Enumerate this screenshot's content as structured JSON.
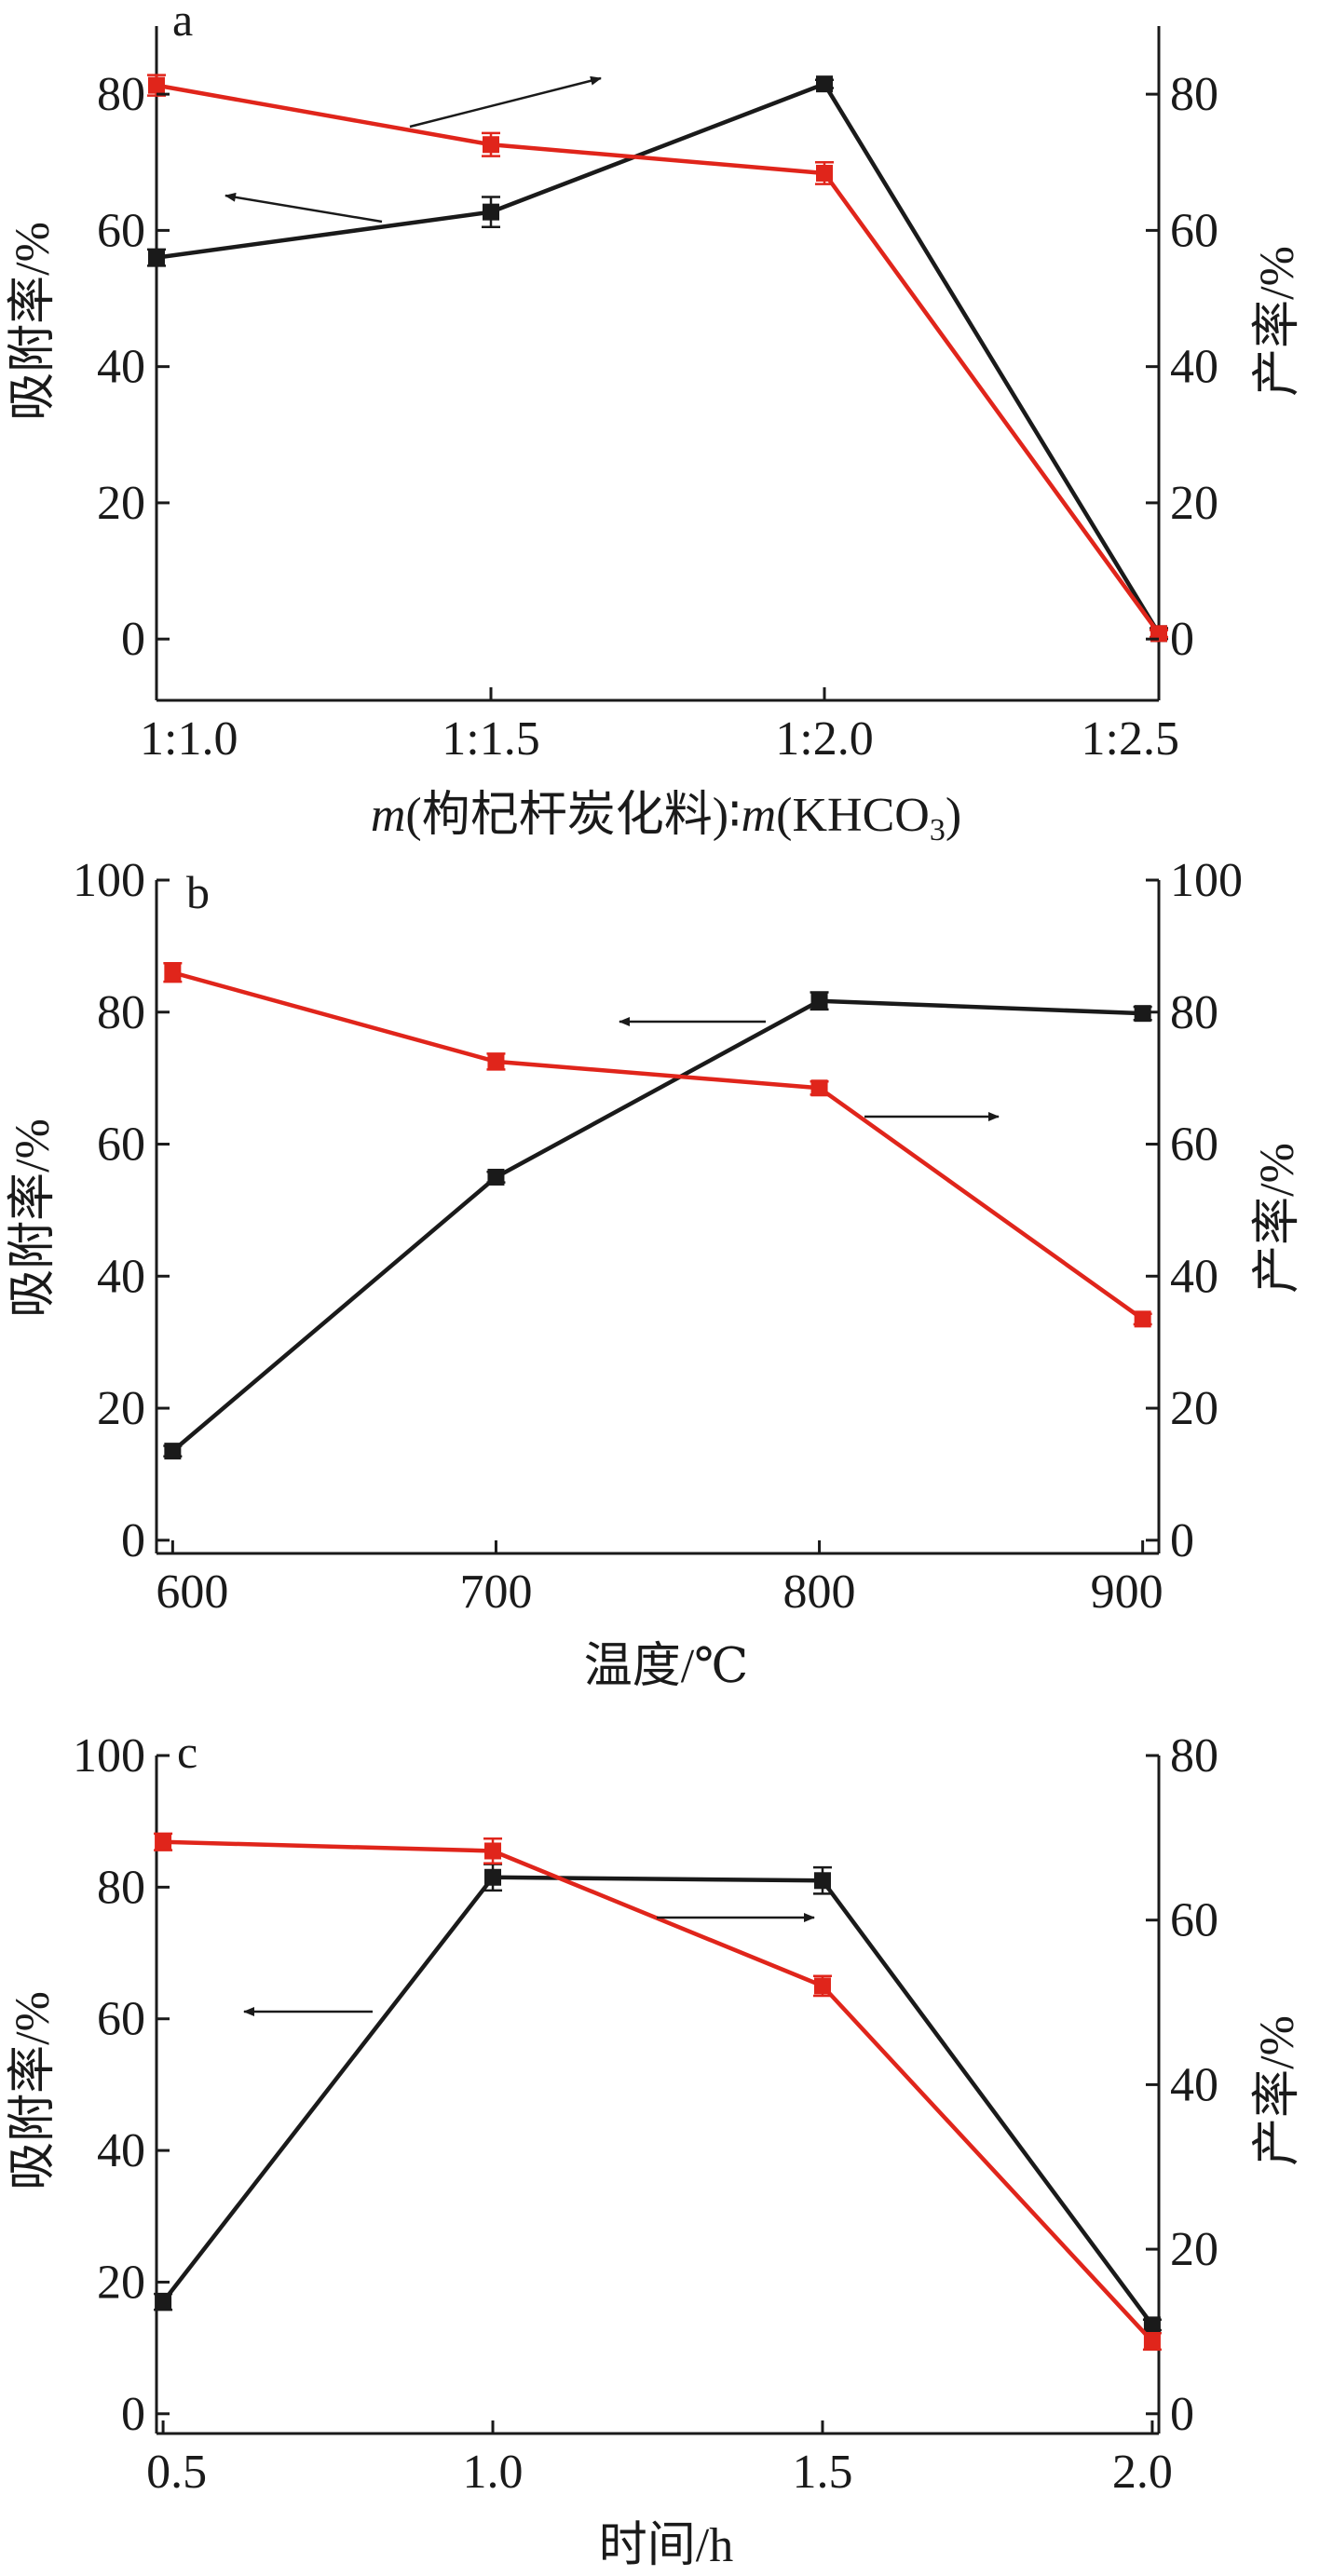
{
  "colors": {
    "adsorption": "#1a1a1a",
    "yield": "#e0251b",
    "axis": "#1a1a1a"
  },
  "chart_data": [
    {
      "type": "line",
      "panel_label": "a",
      "title": "",
      "xlabel_parts": {
        "m1": "m",
        "mid": "(枸杞杆炭化料)∶",
        "m2": "m",
        "pre": "(KHCO",
        "sub": "3",
        "post": ")"
      },
      "ylabel_left": "吸附率/%",
      "ylabel_right": "产率/%",
      "categories": [
        "1:1.0",
        "1:1.5",
        "1:2.0",
        "1:2.5"
      ],
      "ylim_left": [
        -9,
        90
      ],
      "ylim_right": [
        -9,
        90
      ],
      "yticks_left": [
        "0",
        "20",
        "40",
        "60",
        "80"
      ],
      "yticks_right": [
        "0",
        "20",
        "40",
        "60",
        "80"
      ],
      "series": [
        {
          "axis": "left",
          "color": "#1a1a1a",
          "values": [
            56,
            62.7,
            81.5,
            0.8
          ],
          "errors": [
            1.2,
            2.2,
            0.6,
            0.8
          ]
        },
        {
          "axis": "right",
          "color": "#e0251b",
          "values": [
            81.3,
            72.6,
            68.4,
            0.8
          ],
          "errors": [
            1.5,
            1.7,
            1.6,
            0.5
          ]
        }
      ],
      "annotations": [
        {
          "type": "arrow",
          "direction": "left",
          "points_to": "left-axis",
          "series": 0
        },
        {
          "type": "arrow",
          "direction": "right",
          "points_to": "right-axis",
          "series": 1
        }
      ]
    },
    {
      "type": "line",
      "panel_label": "b",
      "title": "",
      "xlabel": "温度/℃",
      "ylabel_left": "吸附率/%",
      "ylabel_right": "产率/%",
      "x": [
        600,
        700,
        800,
        900
      ],
      "xticks": [
        "600",
        "700",
        "800",
        "900"
      ],
      "xlim": [
        595,
        905
      ],
      "ylim_left": [
        -2,
        100
      ],
      "ylim_right": [
        -2,
        100
      ],
      "yticks_left": [
        "0",
        "20",
        "40",
        "60",
        "80",
        "100"
      ],
      "yticks_right": [
        "0",
        "20",
        "40",
        "60",
        "80",
        "100"
      ],
      "series": [
        {
          "axis": "left",
          "color": "#1a1a1a",
          "values": [
            13.5,
            55,
            81.7,
            79.8
          ],
          "errors": [
            0.8,
            0.8,
            1.3,
            1.0
          ]
        },
        {
          "axis": "right",
          "color": "#e0251b",
          "values": [
            86,
            72.5,
            68.5,
            33.5
          ],
          "errors": [
            1.4,
            1.2,
            1.0,
            0.8
          ]
        }
      ],
      "annotations": [
        {
          "type": "arrow",
          "direction": "left",
          "points_to": "left-axis",
          "series": 0
        },
        {
          "type": "arrow",
          "direction": "right",
          "points_to": "right-axis",
          "series": 1
        }
      ]
    },
    {
      "type": "line",
      "panel_label": "c",
      "title": "",
      "xlabel": "时间/h",
      "ylabel_left": "吸附率/%",
      "ylabel_right": "产率/%",
      "x": [
        0.5,
        1.0,
        1.5,
        2.0
      ],
      "xticks": [
        "0.5",
        "1.0",
        "1.5",
        "2.0"
      ],
      "xlim": [
        0.49,
        2.01
      ],
      "ylim_left": [
        -3,
        100
      ],
      "ylim_right": [
        -2.4,
        80
      ],
      "yticks_left": [
        "0",
        "20",
        "40",
        "60",
        "80",
        "100"
      ],
      "yticks_right": [
        "0",
        "20",
        "40",
        "60",
        "80"
      ],
      "series": [
        {
          "axis": "left",
          "color": "#1a1a1a",
          "values": [
            17,
            81.5,
            81,
            13.5
          ],
          "errors": [
            1.2,
            2.0,
            2.0,
            0.8
          ]
        },
        {
          "axis": "right",
          "color": "#e0251b",
          "values": [
            69.5,
            68.4,
            52,
            8.8
          ],
          "errors": [
            1.0,
            1.5,
            1.2,
            1.0
          ]
        }
      ],
      "annotations": [
        {
          "type": "arrow",
          "direction": "left",
          "points_to": "left-axis",
          "series": 0
        },
        {
          "type": "arrow",
          "direction": "right",
          "points_to": "right-axis",
          "series": 1
        }
      ]
    }
  ]
}
